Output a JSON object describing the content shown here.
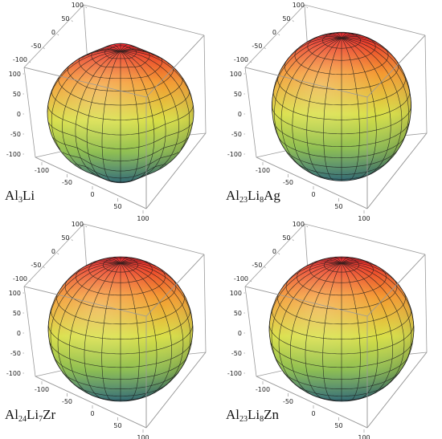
{
  "figure": {
    "panels": [
      {
        "label_parts": [
          [
            "Al",
            ""
          ],
          [
            "3",
            "sub"
          ],
          [
            "Li",
            ""
          ]
        ],
        "shape": "lumpy",
        "z_ticks": [
          "100",
          "50",
          "0",
          "-50",
          "-100"
        ],
        "top_ticks": [
          "100",
          "50",
          "0",
          "-50",
          "-100"
        ],
        "bottom_ticks": [
          "-100",
          "-50",
          "0",
          "50",
          "100"
        ]
      },
      {
        "label_parts": [
          [
            "Al",
            ""
          ],
          [
            "23",
            "sub"
          ],
          [
            "Li",
            ""
          ],
          [
            "8",
            "sub"
          ],
          [
            "Ag",
            ""
          ]
        ],
        "shape": "pear",
        "z_ticks": [
          "100",
          "50",
          "0",
          "-50",
          "-100"
        ],
        "top_ticks": [
          "100",
          "50",
          "0",
          "-50",
          "-100"
        ],
        "bottom_ticks": [
          "-100",
          "-50",
          "0",
          "50",
          "100"
        ]
      },
      {
        "label_parts": [
          [
            "Al",
            ""
          ],
          [
            "24",
            "sub"
          ],
          [
            "Li",
            ""
          ],
          [
            "7",
            "sub"
          ],
          [
            "Zr",
            ""
          ]
        ],
        "shape": "sphere",
        "z_ticks": [
          "100",
          "50",
          "0",
          "-50",
          "-100"
        ],
        "top_ticks": [
          "100",
          "50",
          "0",
          "-50",
          "-100"
        ],
        "bottom_ticks": [
          "-100",
          "-50",
          "0",
          "50",
          "100"
        ]
      },
      {
        "label_parts": [
          [
            "Al",
            ""
          ],
          [
            "23",
            "sub"
          ],
          [
            "Li",
            ""
          ],
          [
            "8",
            "sub"
          ],
          [
            "Zn",
            ""
          ]
        ],
        "shape": "sphere",
        "z_ticks": [
          "100",
          "50",
          "0",
          "-50",
          "-100"
        ],
        "top_ticks": [
          "100",
          "50",
          "0",
          "-50",
          "-100"
        ],
        "bottom_ticks": [
          "-100",
          "-50",
          "0",
          "50",
          "100"
        ]
      }
    ],
    "colors": {
      "box": "#9a9a9a",
      "mesh": "#1a1a1a",
      "top": "#e8202a",
      "upper": "#f49a30",
      "middle": "#d9df46",
      "lower": "#8fbf52",
      "bottom": "#2f6f7a"
    }
  }
}
